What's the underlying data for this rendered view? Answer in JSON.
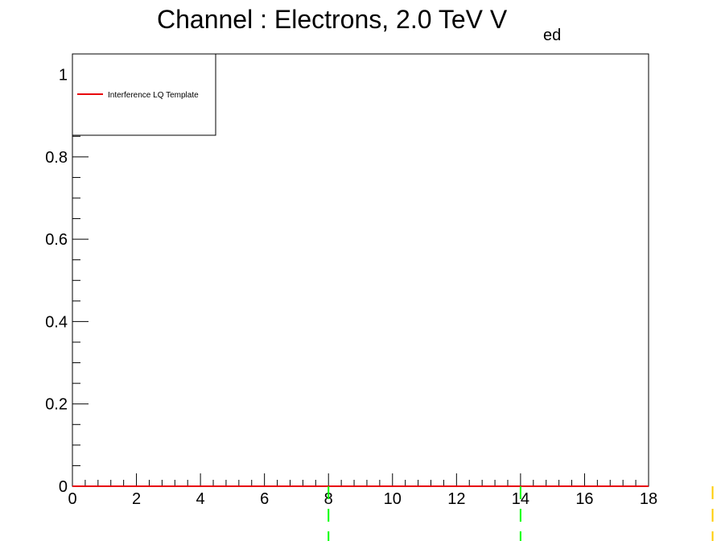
{
  "title": {
    "main": "Channel : Electrons, 2.0 TeV V",
    "subscript": "ed"
  },
  "chart_data": {
    "type": "line",
    "xlim": [
      0,
      18
    ],
    "ylim": [
      0,
      1.05
    ],
    "x_ticks": [
      0,
      2,
      4,
      6,
      8,
      10,
      12,
      14,
      16,
      18
    ],
    "x_tick_labels": [
      "0",
      "2",
      "4",
      "6",
      "8",
      "10",
      "12",
      "14",
      "16",
      "18"
    ],
    "y_ticks": [
      0,
      0.2,
      0.4,
      0.6,
      0.8,
      1
    ],
    "y_tick_labels": [
      "0",
      "0.2",
      "0.4",
      "0.6",
      "0.8",
      "1"
    ],
    "grid": false,
    "legend_position": "top-left",
    "series": [
      {
        "name": "Interference LQ Template",
        "color": "#e8000b",
        "x": [
          0,
          18
        ],
        "y": [
          0,
          0
        ]
      }
    ],
    "vertical_lines": [
      {
        "x": 8,
        "color": "#00ff00",
        "style": "dashed"
      },
      {
        "x": 14,
        "color": "#00ff00",
        "style": "dashed"
      },
      {
        "x": 20,
        "color": "#ffcc00",
        "style": "dashed"
      }
    ]
  },
  "colors": {
    "frame": "#000000",
    "background": "#ffffff"
  }
}
